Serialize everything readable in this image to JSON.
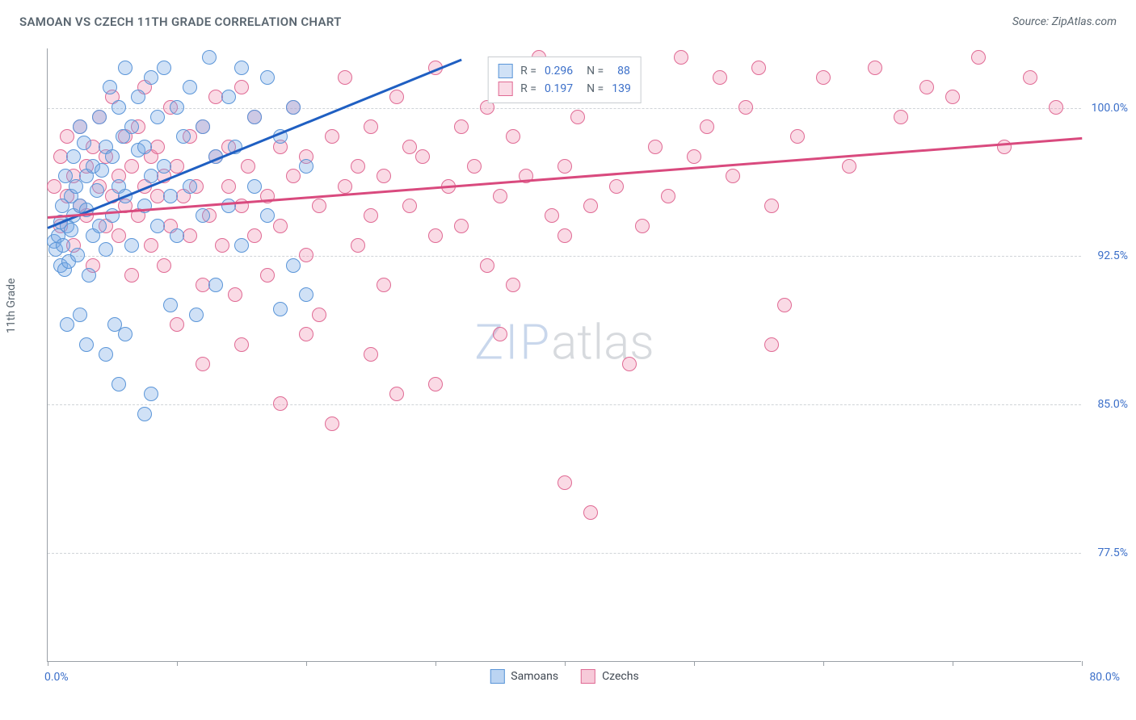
{
  "header": {
    "title": "SAMOAN VS CZECH 11TH GRADE CORRELATION CHART",
    "source": "Source: ZipAtlas.com"
  },
  "chart": {
    "type": "scatter",
    "ylabel": "11th Grade",
    "xlim": [
      0,
      80
    ],
    "ylim": [
      72,
      103
    ],
    "xlim_labels": {
      "min": "0.0%",
      "max": "80.0%"
    },
    "yticks": [
      {
        "value": 77.5,
        "label": "77.5%"
      },
      {
        "value": 85.0,
        "label": "85.0%"
      },
      {
        "value": 92.5,
        "label": "92.5%"
      },
      {
        "value": 100.0,
        "label": "100.0%"
      }
    ],
    "xtick_marks": [
      0,
      10,
      20,
      30,
      40,
      50,
      60,
      70,
      80
    ],
    "grid_color": "#d0d4d8",
    "axis_color": "#9aa0a6",
    "background_color": "#ffffff",
    "series": [
      {
        "name": "Samoans",
        "fill": "rgba(120,170,230,0.35)",
        "stroke": "#5a95d8",
        "trend_color": "#1f5fc2",
        "R": "0.296",
        "N": "88",
        "trend": {
          "x1": 0,
          "y1": 94.0,
          "x2": 32,
          "y2": 102.5
        },
        "points": [
          [
            0.5,
            93.2
          ],
          [
            0.6,
            92.8
          ],
          [
            0.8,
            93.5
          ],
          [
            1.0,
            94.2
          ],
          [
            1.0,
            92.0
          ],
          [
            1.1,
            95.0
          ],
          [
            1.2,
            93.0
          ],
          [
            1.3,
            91.8
          ],
          [
            1.4,
            96.5
          ],
          [
            1.5,
            94.0
          ],
          [
            1.6,
            92.2
          ],
          [
            1.8,
            95.5
          ],
          [
            1.8,
            93.8
          ],
          [
            2.0,
            97.5
          ],
          [
            2.0,
            94.5
          ],
          [
            2.2,
            96.0
          ],
          [
            2.3,
            92.5
          ],
          [
            2.5,
            99.0
          ],
          [
            2.5,
            95.0
          ],
          [
            2.8,
            98.2
          ],
          [
            3.0,
            94.8
          ],
          [
            3.0,
            96.5
          ],
          [
            3.2,
            91.5
          ],
          [
            3.5,
            97.0
          ],
          [
            3.5,
            93.5
          ],
          [
            3.8,
            95.8
          ],
          [
            4.0,
            99.5
          ],
          [
            4.0,
            94.0
          ],
          [
            4.2,
            96.8
          ],
          [
            4.5,
            98.0
          ],
          [
            4.5,
            92.8
          ],
          [
            4.8,
            101.0
          ],
          [
            5.0,
            97.5
          ],
          [
            5.0,
            94.5
          ],
          [
            5.2,
            89.0
          ],
          [
            5.5,
            100.0
          ],
          [
            5.5,
            96.0
          ],
          [
            5.8,
            98.5
          ],
          [
            6.0,
            95.5
          ],
          [
            6.0,
            102.0
          ],
          [
            6.5,
            99.0
          ],
          [
            6.5,
            93.0
          ],
          [
            7.0,
            97.8
          ],
          [
            7.0,
            100.5
          ],
          [
            7.5,
            95.0
          ],
          [
            7.5,
            98.0
          ],
          [
            8.0,
            101.5
          ],
          [
            8.0,
            96.5
          ],
          [
            8.5,
            94.0
          ],
          [
            8.5,
            99.5
          ],
          [
            9.0,
            102.0
          ],
          [
            9.0,
            97.0
          ],
          [
            9.5,
            95.5
          ],
          [
            10.0,
            100.0
          ],
          [
            10.0,
            93.5
          ],
          [
            10.5,
            98.5
          ],
          [
            11.0,
            101.0
          ],
          [
            11.0,
            96.0
          ],
          [
            11.5,
            89.5
          ],
          [
            12.0,
            99.0
          ],
          [
            12.0,
            94.5
          ],
          [
            12.5,
            102.5
          ],
          [
            13.0,
            97.5
          ],
          [
            13.0,
            91.0
          ],
          [
            14.0,
            100.5
          ],
          [
            14.0,
            95.0
          ],
          [
            14.5,
            98.0
          ],
          [
            15.0,
            102.0
          ],
          [
            15.0,
            93.0
          ],
          [
            16.0,
            99.5
          ],
          [
            16.0,
            96.0
          ],
          [
            17.0,
            101.5
          ],
          [
            17.0,
            94.5
          ],
          [
            18.0,
            98.5
          ],
          [
            18.0,
            89.8
          ],
          [
            19.0,
            100.0
          ],
          [
            19.0,
            92.0
          ],
          [
            20.0,
            97.0
          ],
          [
            20.0,
            90.5
          ],
          [
            3.0,
            88.0
          ],
          [
            4.5,
            87.5
          ],
          [
            6.0,
            88.5
          ],
          [
            8.0,
            85.5
          ],
          [
            2.5,
            89.5
          ],
          [
            7.5,
            84.5
          ],
          [
            5.5,
            86.0
          ],
          [
            1.5,
            89.0
          ],
          [
            9.5,
            90.0
          ]
        ]
      },
      {
        "name": "Czechs",
        "fill": "rgba(240,150,180,0.35)",
        "stroke": "#e06a94",
        "trend_color": "#d94a7e",
        "R": "0.197",
        "N": "139",
        "trend": {
          "x1": 0,
          "y1": 94.5,
          "x2": 80,
          "y2": 98.5
        },
        "points": [
          [
            0.5,
            96.0
          ],
          [
            1.0,
            97.5
          ],
          [
            1.0,
            94.0
          ],
          [
            1.5,
            95.5
          ],
          [
            1.5,
            98.5
          ],
          [
            2.0,
            96.5
          ],
          [
            2.0,
            93.0
          ],
          [
            2.5,
            99.0
          ],
          [
            2.5,
            95.0
          ],
          [
            3.0,
            97.0
          ],
          [
            3.0,
            94.5
          ],
          [
            3.5,
            98.0
          ],
          [
            3.5,
            92.0
          ],
          [
            4.0,
            96.0
          ],
          [
            4.0,
            99.5
          ],
          [
            4.5,
            94.0
          ],
          [
            4.5,
            97.5
          ],
          [
            5.0,
            95.5
          ],
          [
            5.0,
            100.5
          ],
          [
            5.5,
            96.5
          ],
          [
            5.5,
            93.5
          ],
          [
            6.0,
            98.5
          ],
          [
            6.0,
            95.0
          ],
          [
            6.5,
            97.0
          ],
          [
            6.5,
            91.5
          ],
          [
            7.0,
            99.0
          ],
          [
            7.0,
            94.5
          ],
          [
            7.5,
            96.0
          ],
          [
            7.5,
            101.0
          ],
          [
            8.0,
            93.0
          ],
          [
            8.0,
            97.5
          ],
          [
            8.5,
            95.5
          ],
          [
            8.5,
            98.0
          ],
          [
            9.0,
            92.0
          ],
          [
            9.0,
            96.5
          ],
          [
            9.5,
            100.0
          ],
          [
            9.5,
            94.0
          ],
          [
            10.0,
            97.0
          ],
          [
            10.0,
            89.0
          ],
          [
            10.5,
            95.5
          ],
          [
            11.0,
            98.5
          ],
          [
            11.0,
            93.5
          ],
          [
            11.5,
            96.0
          ],
          [
            12.0,
            99.0
          ],
          [
            12.0,
            91.0
          ],
          [
            12.5,
            94.5
          ],
          [
            13.0,
            97.5
          ],
          [
            13.0,
            100.5
          ],
          [
            13.5,
            93.0
          ],
          [
            14.0,
            96.0
          ],
          [
            14.0,
            98.0
          ],
          [
            14.5,
            90.5
          ],
          [
            15.0,
            95.0
          ],
          [
            15.0,
            101.0
          ],
          [
            15.5,
            97.0
          ],
          [
            16.0,
            93.5
          ],
          [
            16.0,
            99.5
          ],
          [
            17.0,
            95.5
          ],
          [
            17.0,
            91.5
          ],
          [
            18.0,
            98.0
          ],
          [
            18.0,
            94.0
          ],
          [
            19.0,
            96.5
          ],
          [
            19.0,
            100.0
          ],
          [
            20.0,
            92.5
          ],
          [
            20.0,
            97.5
          ],
          [
            21.0,
            95.0
          ],
          [
            21.0,
            89.5
          ],
          [
            22.0,
            98.5
          ],
          [
            22.0,
            84.0
          ],
          [
            23.0,
            96.0
          ],
          [
            23.0,
            101.5
          ],
          [
            24.0,
            93.0
          ],
          [
            24.0,
            97.0
          ],
          [
            25.0,
            99.0
          ],
          [
            25.0,
            94.5
          ],
          [
            26.0,
            91.0
          ],
          [
            26.0,
            96.5
          ],
          [
            27.0,
            100.5
          ],
          [
            27.0,
            85.5
          ],
          [
            28.0,
            95.0
          ],
          [
            28.0,
            98.0
          ],
          [
            29.0,
            97.5
          ],
          [
            30.0,
            93.5
          ],
          [
            30.0,
            102.0
          ],
          [
            31.0,
            96.0
          ],
          [
            32.0,
            99.0
          ],
          [
            32.0,
            94.0
          ],
          [
            33.0,
            97.0
          ],
          [
            34.0,
            92.0
          ],
          [
            34.0,
            100.0
          ],
          [
            35.0,
            95.5
          ],
          [
            36.0,
            98.5
          ],
          [
            36.0,
            91.0
          ],
          [
            37.0,
            96.5
          ],
          [
            38.0,
            102.5
          ],
          [
            39.0,
            94.5
          ],
          [
            40.0,
            97.0
          ],
          [
            40.0,
            93.5
          ],
          [
            41.0,
            99.5
          ],
          [
            42.0,
            95.0
          ],
          [
            43.0,
            101.0
          ],
          [
            44.0,
            96.0
          ],
          [
            45.0,
            102.0
          ],
          [
            46.0,
            94.0
          ],
          [
            47.0,
            98.0
          ],
          [
            48.0,
            95.5
          ],
          [
            49.0,
            102.5
          ],
          [
            50.0,
            97.5
          ],
          [
            51.0,
            99.0
          ],
          [
            52.0,
            101.5
          ],
          [
            53.0,
            96.5
          ],
          [
            54.0,
            100.0
          ],
          [
            55.0,
            102.0
          ],
          [
            56.0,
            95.0
          ],
          [
            57.0,
            90.0
          ],
          [
            58.0,
            98.5
          ],
          [
            60.0,
            101.5
          ],
          [
            62.0,
            97.0
          ],
          [
            64.0,
            102.0
          ],
          [
            66.0,
            99.5
          ],
          [
            68.0,
            101.0
          ],
          [
            70.0,
            100.5
          ],
          [
            72.0,
            102.5
          ],
          [
            74.0,
            98.0
          ],
          [
            76.0,
            101.5
          ],
          [
            78.0,
            100.0
          ],
          [
            45.0,
            87.0
          ],
          [
            40.0,
            81.0
          ],
          [
            42.0,
            79.5
          ],
          [
            35.0,
            88.5
          ],
          [
            30.0,
            86.0
          ],
          [
            25.0,
            87.5
          ],
          [
            18.0,
            85.0
          ],
          [
            15.0,
            88.0
          ],
          [
            56.0,
            88.0
          ],
          [
            12.0,
            87.0
          ],
          [
            20.0,
            88.5
          ]
        ]
      }
    ],
    "legend_bottom": [
      {
        "label": "Samoans",
        "fill": "rgba(120,170,230,0.5)",
        "stroke": "#5a95d8"
      },
      {
        "label": "Czechs",
        "fill": "rgba(240,150,180,0.5)",
        "stroke": "#e06a94"
      }
    ],
    "watermark": {
      "part1": "ZIP",
      "part2": "atlas"
    }
  }
}
